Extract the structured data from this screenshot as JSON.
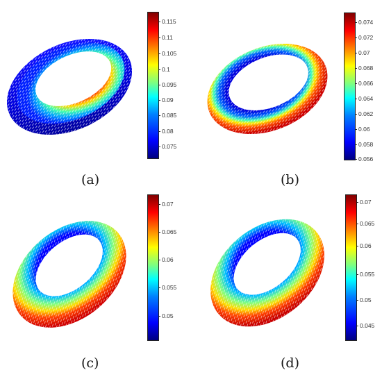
{
  "panels": [
    {
      "label": "(a)",
      "colorbar_ticks": [
        "0.115",
        "0.11",
        "0.105",
        "0.1",
        "0.095",
        "0.09",
        "0.085",
        "0.08",
        "0.075"
      ]
    },
    {
      "label": "(b)",
      "colorbar_ticks": [
        "0.074",
        "0.072",
        "0.07",
        "0.068",
        "0.066",
        "0.064",
        "0.062",
        "0.06",
        "0.058",
        "0.056"
      ]
    },
    {
      "label": "(c)",
      "colorbar_ticks": [
        "0.07",
        "0.065",
        "0.06",
        "0.055",
        "0.05"
      ]
    },
    {
      "label": "(d)",
      "colorbar_ticks": [
        "0.07",
        "0.065",
        "0.06",
        "0.055",
        "0.05",
        "0.045"
      ]
    }
  ],
  "colormap": "jet"
}
